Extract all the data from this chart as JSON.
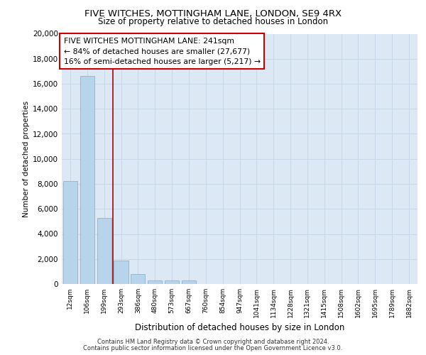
{
  "title_line1": "FIVE WITCHES, MOTTINGHAM LANE, LONDON, SE9 4RX",
  "title_line2": "Size of property relative to detached houses in London",
  "xlabel": "Distribution of detached houses by size in London",
  "ylabel": "Number of detached properties",
  "categories": [
    "12sqm",
    "106sqm",
    "199sqm",
    "293sqm",
    "386sqm",
    "480sqm",
    "573sqm",
    "667sqm",
    "760sqm",
    "854sqm",
    "947sqm",
    "1041sqm",
    "1134sqm",
    "1228sqm",
    "1321sqm",
    "1415sqm",
    "1508sqm",
    "1602sqm",
    "1695sqm",
    "1789sqm",
    "1882sqm"
  ],
  "values": [
    8200,
    16600,
    5300,
    1850,
    780,
    300,
    280,
    300,
    0,
    0,
    0,
    0,
    0,
    0,
    0,
    0,
    0,
    0,
    0,
    0,
    0
  ],
  "bar_color": "#b8d4ea",
  "bar_edge_color": "#8ab4d4",
  "vline_x": 2.5,
  "vline_color": "#aa0000",
  "ylim": [
    0,
    20000
  ],
  "yticks": [
    0,
    2000,
    4000,
    6000,
    8000,
    10000,
    12000,
    14000,
    16000,
    18000,
    20000
  ],
  "annotation_text": "FIVE WITCHES MOTTINGHAM LANE: 241sqm\n← 84% of detached houses are smaller (27,677)\n16% of semi-detached houses are larger (5,217) →",
  "annotation_box_color": "#ffffff",
  "annotation_box_edge": "#cc0000",
  "footer_line1": "Contains HM Land Registry data © Crown copyright and database right 2024.",
  "footer_line2": "Contains public sector information licensed under the Open Government Licence v3.0.",
  "grid_color": "#c8d8e8",
  "plot_bg_color": "#dce9f5",
  "fig_bg_color": "#ffffff"
}
